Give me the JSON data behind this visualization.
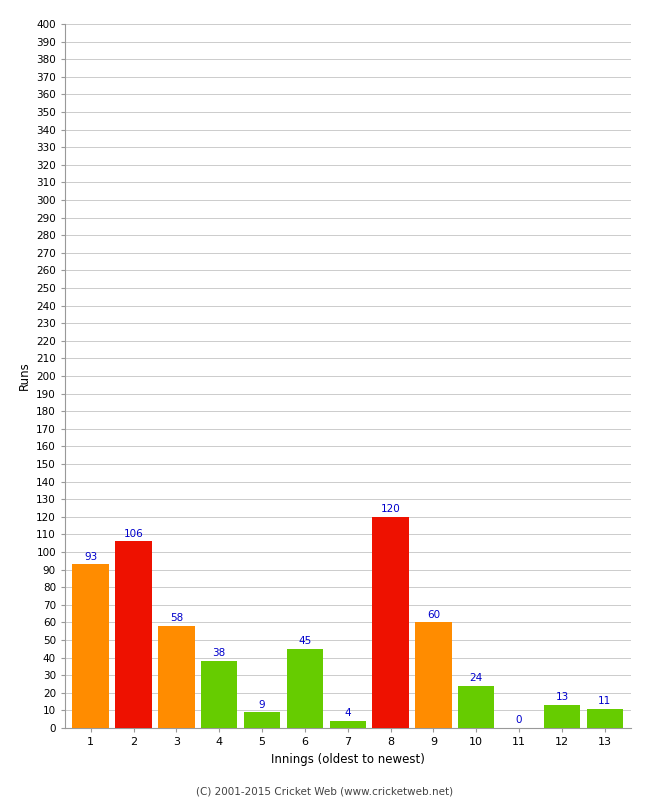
{
  "innings": [
    1,
    2,
    3,
    4,
    5,
    6,
    7,
    8,
    9,
    10,
    11,
    12,
    13
  ],
  "values": [
    93,
    106,
    58,
    38,
    9,
    45,
    4,
    120,
    60,
    24,
    0,
    13,
    11
  ],
  "colors": [
    "#ff8c00",
    "#ee1100",
    "#ff8c00",
    "#66cc00",
    "#66cc00",
    "#66cc00",
    "#66cc00",
    "#ee1100",
    "#ff8c00",
    "#66cc00",
    "#66cc00",
    "#66cc00",
    "#66cc00"
  ],
  "xlabel": "Innings (oldest to newest)",
  "ylabel": "Runs",
  "ylim": [
    0,
    400
  ],
  "ytick_step": 10,
  "background_color": "#ffffff",
  "grid_color": "#cccccc",
  "label_color": "#0000cc",
  "footer": "(C) 2001-2015 Cricket Web (www.cricketweb.net)"
}
